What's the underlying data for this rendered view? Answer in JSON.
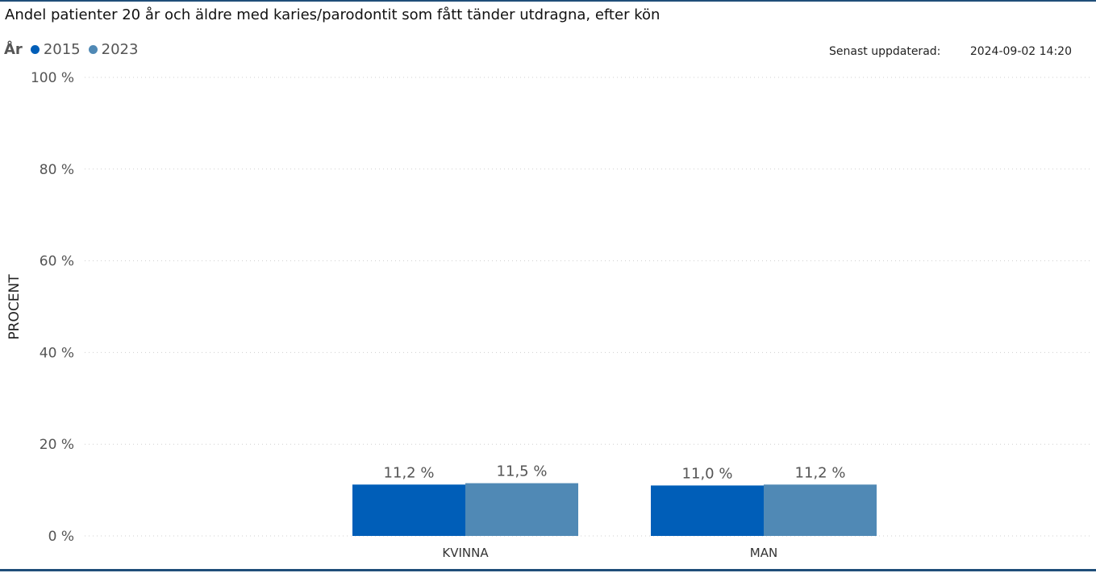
{
  "header": {
    "title": "Andel patienter 20 år och äldre med karies/parodontit som fått tänder utdragna, efter kön",
    "updated_label": "Senast uppdaterad:",
    "updated_value": "2024-09-02 14:20"
  },
  "legend": {
    "title": "År",
    "items": [
      {
        "label": "2015",
        "color": "#005EB8"
      },
      {
        "label": "2023",
        "color": "#5089B5"
      }
    ]
  },
  "chart_data": {
    "type": "bar",
    "categories": [
      "KVINNA",
      "MAN"
    ],
    "series": [
      {
        "name": "2015",
        "values": [
          11.2,
          11.0
        ],
        "labels": [
          "11,2 %",
          "11,0 %"
        ],
        "color": "#005EB8"
      },
      {
        "name": "2023",
        "values": [
          11.5,
          11.2
        ],
        "labels": [
          "11,5 %",
          "11,2 %"
        ],
        "color": "#5089B5"
      }
    ],
    "ylabel": "PROCENT",
    "xlabel": "",
    "ylim": [
      0,
      100
    ],
    "yticks": [
      0,
      20,
      40,
      60,
      80,
      100
    ],
    "ytick_labels": [
      "0 %",
      "20 %",
      "40 %",
      "60 %",
      "80 %",
      "100 %"
    ],
    "grid": true,
    "legend_position": "top-left"
  }
}
